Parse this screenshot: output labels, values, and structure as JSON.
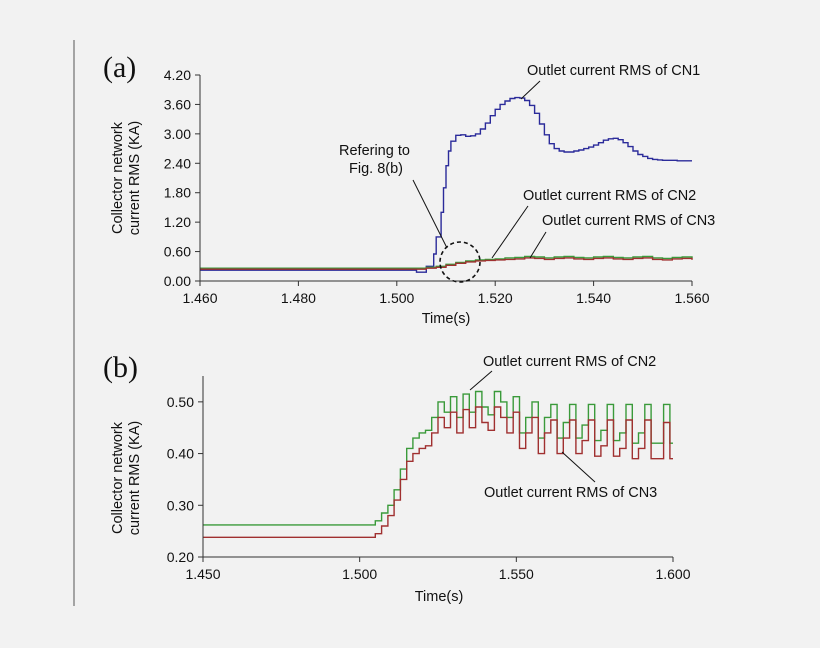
{
  "chart_data": [
    {
      "type": "line",
      "panel_label": "(a)",
      "xlabel": "Time(s)",
      "ylabel_lines": [
        "Collector network",
        "current RMS (KA)"
      ],
      "xlim": [
        1.46,
        1.56
      ],
      "ylim": [
        0,
        4.2
      ],
      "xticks": [
        1.46,
        1.48,
        1.5,
        1.52,
        1.54,
        1.56
      ],
      "xtick_labels": [
        "1.460",
        "1.480",
        "1.500",
        "1.520",
        "1.540",
        "1.560"
      ],
      "yticks": [
        0,
        0.6,
        1.2,
        1.8,
        2.4,
        3.0,
        3.6,
        4.2
      ],
      "ytick_labels": [
        "0.00",
        "0.60",
        "1.20",
        "1.80",
        "2.40",
        "3.00",
        "3.60",
        "4.20"
      ],
      "series": [
        {
          "name": "CN1",
          "color": "#2b2b9a",
          "x": [
            1.46,
            1.5,
            1.504,
            1.506,
            1.5075,
            1.508,
            1.509,
            1.5095,
            1.51,
            1.5105,
            1.511,
            1.512,
            1.513,
            1.514,
            1.515,
            1.516,
            1.517,
            1.518,
            1.519,
            1.52,
            1.521,
            1.522,
            1.523,
            1.524,
            1.525,
            1.526,
            1.527,
            1.528,
            1.529,
            1.53,
            1.531,
            1.532,
            1.533,
            1.534,
            1.535,
            1.536,
            1.537,
            1.538,
            1.539,
            1.54,
            1.541,
            1.542,
            1.543,
            1.544,
            1.545,
            1.546,
            1.547,
            1.548,
            1.549,
            1.55,
            1.551,
            1.552,
            1.553,
            1.554,
            1.555,
            1.556,
            1.557,
            1.558,
            1.559,
            1.56
          ],
          "values": [
            0.22,
            0.22,
            0.18,
            0.3,
            0.55,
            0.9,
            1.4,
            1.9,
            2.35,
            2.65,
            2.85,
            2.97,
            2.98,
            2.95,
            2.96,
            3.0,
            3.1,
            3.22,
            3.37,
            3.5,
            3.6,
            3.67,
            3.72,
            3.74,
            3.73,
            3.68,
            3.58,
            3.42,
            3.2,
            2.98,
            2.8,
            2.7,
            2.65,
            2.63,
            2.63,
            2.65,
            2.67,
            2.7,
            2.73,
            2.77,
            2.82,
            2.87,
            2.9,
            2.91,
            2.88,
            2.82,
            2.74,
            2.65,
            2.58,
            2.54,
            2.5,
            2.48,
            2.47,
            2.46,
            2.46,
            2.46,
            2.45,
            2.45,
            2.45,
            2.45
          ]
        },
        {
          "name": "CN2",
          "color": "#3a9a3a",
          "x": [
            1.46,
            1.5,
            1.506,
            1.508,
            1.51,
            1.512,
            1.514,
            1.516,
            1.518,
            1.52,
            1.522,
            1.524,
            1.526,
            1.528,
            1.53,
            1.532,
            1.534,
            1.536,
            1.538,
            1.54,
            1.542,
            1.544,
            1.546,
            1.548,
            1.55,
            1.552,
            1.554,
            1.556,
            1.558,
            1.56
          ],
          "values": [
            0.26,
            0.26,
            0.28,
            0.3,
            0.34,
            0.38,
            0.41,
            0.43,
            0.44,
            0.45,
            0.47,
            0.48,
            0.5,
            0.49,
            0.47,
            0.49,
            0.5,
            0.48,
            0.47,
            0.49,
            0.5,
            0.48,
            0.47,
            0.49,
            0.5,
            0.47,
            0.46,
            0.48,
            0.49,
            0.46
          ]
        },
        {
          "name": "CN3",
          "color": "#a03030",
          "x": [
            1.46,
            1.5,
            1.506,
            1.508,
            1.51,
            1.512,
            1.514,
            1.516,
            1.518,
            1.52,
            1.522,
            1.524,
            1.526,
            1.528,
            1.53,
            1.532,
            1.534,
            1.536,
            1.538,
            1.54,
            1.542,
            1.544,
            1.546,
            1.548,
            1.55,
            1.552,
            1.554,
            1.556,
            1.558,
            1.56
          ],
          "values": [
            0.24,
            0.24,
            0.26,
            0.28,
            0.32,
            0.36,
            0.39,
            0.41,
            0.42,
            0.43,
            0.44,
            0.45,
            0.47,
            0.46,
            0.44,
            0.46,
            0.47,
            0.45,
            0.44,
            0.46,
            0.47,
            0.45,
            0.44,
            0.46,
            0.47,
            0.44,
            0.43,
            0.45,
            0.46,
            0.43
          ]
        }
      ],
      "annotations": {
        "cn1": "Outlet current RMS of CN1",
        "cn2": "Outlet current RMS of CN2",
        "cn3": "Outlet current RMS of CN3",
        "ref_line1": "Refering to",
        "ref_line2": "Fig. 8(b)"
      }
    },
    {
      "type": "line",
      "panel_label": "(b)",
      "xlabel": "Time(s)",
      "ylabel_lines": [
        "Collector network",
        "current RMS (KA)"
      ],
      "xlim": [
        1.45,
        1.6
      ],
      "ylim": [
        0.2,
        0.55
      ],
      "xticks": [
        1.45,
        1.5,
        1.55,
        1.6
      ],
      "xtick_labels": [
        "1.450",
        "1.500",
        "1.550",
        "1.600"
      ],
      "yticks": [
        0.2,
        0.3,
        0.4,
        0.5
      ],
      "ytick_labels": [
        "0.20",
        "0.30",
        "0.40",
        "0.50"
      ],
      "series": [
        {
          "name": "CN2",
          "color": "#3a9a3a",
          "x": [
            1.45,
            1.503,
            1.505,
            1.507,
            1.509,
            1.511,
            1.513,
            1.515,
            1.517,
            1.519,
            1.521,
            1.523,
            1.525,
            1.527,
            1.529,
            1.531,
            1.533,
            1.535,
            1.537,
            1.539,
            1.541,
            1.543,
            1.545,
            1.547,
            1.549,
            1.551,
            1.553,
            1.555,
            1.557,
            1.559,
            1.561,
            1.563,
            1.565,
            1.567,
            1.569,
            1.571,
            1.573,
            1.575,
            1.577,
            1.579,
            1.581,
            1.583,
            1.585,
            1.587,
            1.589,
            1.591,
            1.593,
            1.595,
            1.597,
            1.599
          ],
          "values": [
            0.262,
            0.262,
            0.27,
            0.285,
            0.3,
            0.33,
            0.37,
            0.41,
            0.43,
            0.44,
            0.445,
            0.47,
            0.5,
            0.48,
            0.51,
            0.47,
            0.515,
            0.48,
            0.52,
            0.49,
            0.475,
            0.52,
            0.5,
            0.47,
            0.51,
            0.44,
            0.47,
            0.5,
            0.43,
            0.47,
            0.495,
            0.43,
            0.46,
            0.495,
            0.43,
            0.455,
            0.495,
            0.425,
            0.445,
            0.495,
            0.425,
            0.44,
            0.495,
            0.42,
            0.44,
            0.495,
            0.42,
            0.42,
            0.495,
            0.42
          ]
        },
        {
          "name": "CN3",
          "color": "#a03030",
          "x": [
            1.45,
            1.503,
            1.505,
            1.507,
            1.509,
            1.511,
            1.513,
            1.515,
            1.517,
            1.519,
            1.521,
            1.523,
            1.525,
            1.527,
            1.529,
            1.531,
            1.533,
            1.535,
            1.537,
            1.539,
            1.541,
            1.543,
            1.545,
            1.547,
            1.549,
            1.551,
            1.553,
            1.555,
            1.557,
            1.559,
            1.561,
            1.563,
            1.565,
            1.567,
            1.569,
            1.571,
            1.573,
            1.575,
            1.577,
            1.579,
            1.581,
            1.583,
            1.585,
            1.587,
            1.589,
            1.591,
            1.593,
            1.595,
            1.597,
            1.599
          ],
          "values": [
            0.238,
            0.238,
            0.245,
            0.26,
            0.28,
            0.31,
            0.35,
            0.385,
            0.4,
            0.41,
            0.415,
            0.44,
            0.47,
            0.45,
            0.48,
            0.44,
            0.485,
            0.45,
            0.49,
            0.46,
            0.445,
            0.49,
            0.47,
            0.44,
            0.48,
            0.41,
            0.44,
            0.47,
            0.4,
            0.44,
            0.465,
            0.4,
            0.43,
            0.465,
            0.4,
            0.425,
            0.465,
            0.395,
            0.415,
            0.465,
            0.395,
            0.41,
            0.465,
            0.39,
            0.41,
            0.465,
            0.39,
            0.39,
            0.46,
            0.39
          ]
        }
      ],
      "annotations": {
        "cn2": "Outlet current RMS of CN2",
        "cn3": "Outlet current RMS of CN3"
      }
    }
  ]
}
